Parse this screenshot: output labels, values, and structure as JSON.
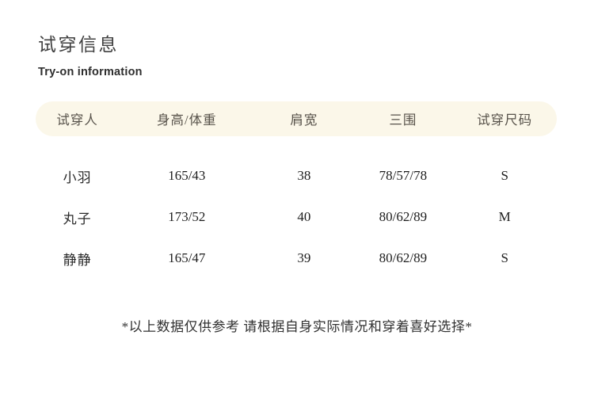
{
  "page": {
    "title_zh": "试穿信息",
    "title_en": "Try-on information"
  },
  "table": {
    "headers": [
      "试穿人",
      "身高/体重",
      "肩宽",
      "三围",
      "试穿尺码"
    ],
    "rows": [
      {
        "name": "小羽",
        "height_weight": "165/43",
        "shoulder": "38",
        "measurements": "78/57/78",
        "size": "S"
      },
      {
        "name": "丸子",
        "height_weight": "173/52",
        "shoulder": "40",
        "measurements": "80/62/89",
        "size": "M"
      },
      {
        "name": "静静",
        "height_weight": "165/47",
        "shoulder": "39",
        "measurements": "80/62/89",
        "size": "S"
      }
    ]
  },
  "footer": {
    "note": "*以上数据仅供参考 请根据自身实际情况和穿着喜好选择*"
  },
  "colors": {
    "background": "#ffffff",
    "header_pill_bg": "#fbf7e9",
    "title_text": "#3f3f3f",
    "header_text": "#57524a",
    "data_text": "#1d1d1d"
  }
}
